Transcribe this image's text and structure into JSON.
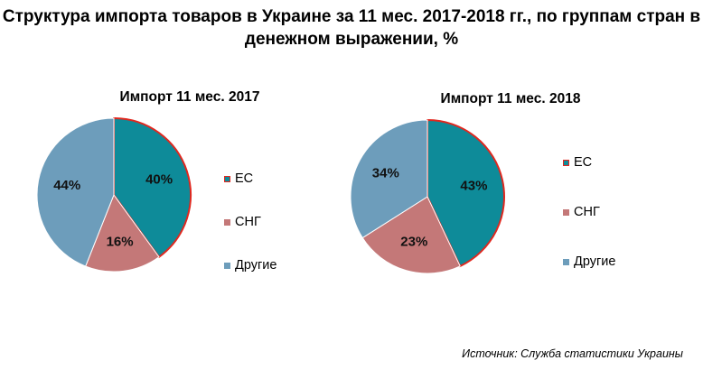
{
  "title": "Структура импорта товаров в Украине за 11 мес. 2017-2018 гг., по группам стран в денежном выражении, %",
  "source": "Источник: Служба статистики Украины",
  "colors": {
    "es": "#0e8b99",
    "es_border": "#e0281f",
    "sng": "#c47878",
    "other": "#6d9dbb"
  },
  "chart_data": [
    {
      "type": "pie",
      "title": "Импорт 11 мес. 2017",
      "categories": [
        "ЕС",
        "СНГ",
        "Другие"
      ],
      "values": [
        40,
        16,
        44
      ],
      "labels": [
        "40%",
        "16%",
        "44%"
      ],
      "legend": "right"
    },
    {
      "type": "pie",
      "title": "Импорт 11 мес. 2018",
      "categories": [
        "ЕС",
        "СНГ",
        "Другие"
      ],
      "values": [
        43,
        23,
        34
      ],
      "labels": [
        "43%",
        "23%",
        "34%"
      ],
      "legend": "right"
    }
  ]
}
